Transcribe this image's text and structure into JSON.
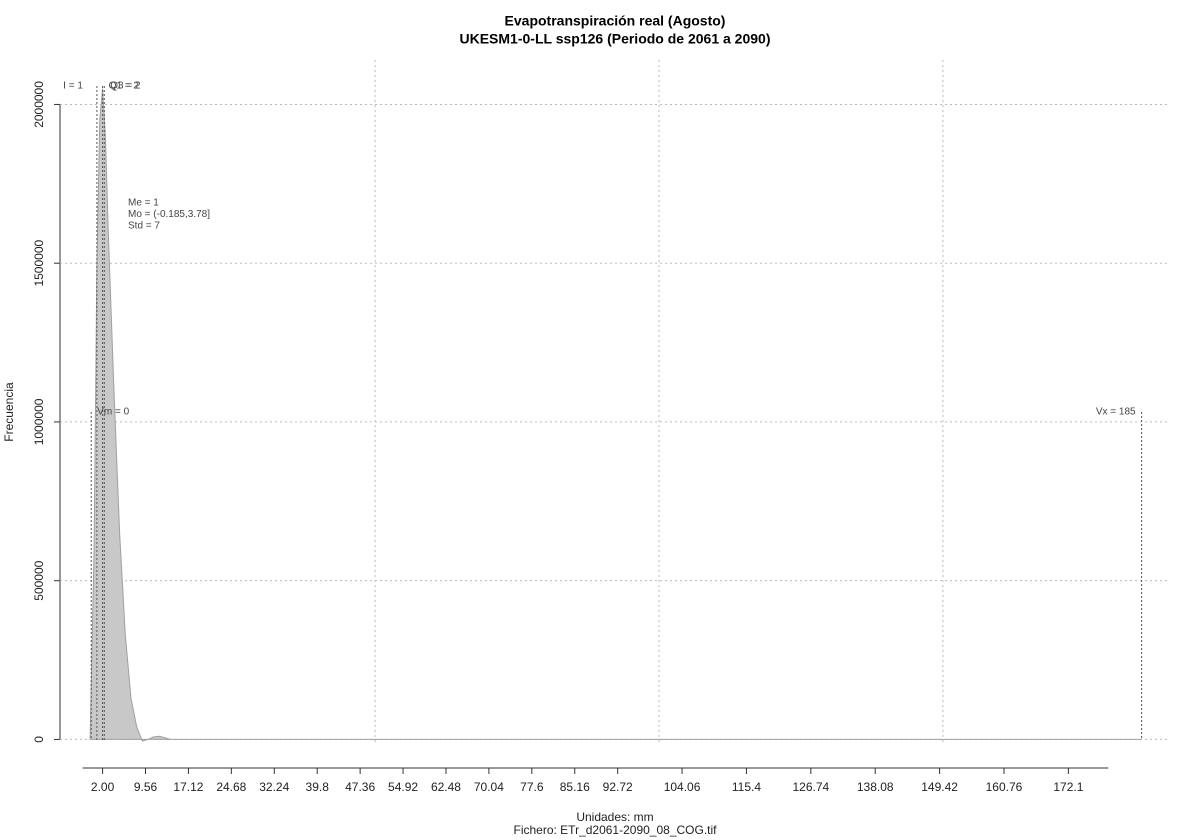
{
  "chart_data": {
    "type": "density",
    "title": "Evapotranspiración real (Agosto)",
    "subtitle": "UKESM1-0-LL ssp126 (Periodo de 2061 a 2090)",
    "x_label": "Unidades: mm",
    "y_label": "Frecuencia",
    "footer": "Fichero: ETr_d2061-2090_08_COG.tif",
    "xlim": [
      -5.5,
      190
    ],
    "ylim": [
      -90000,
      2140000
    ],
    "xticks": [
      {
        "value": 2,
        "label": "2.00"
      },
      9.56,
      17.12,
      24.68,
      32.24,
      39.8,
      47.36,
      54.92,
      62.48,
      70.04,
      77.6,
      85.16,
      92.72,
      104.06,
      115.4,
      126.74,
      138.08,
      149.42,
      160.76,
      172.1
    ],
    "yticks": [
      0,
      500000,
      1000000,
      1500000,
      2000000
    ],
    "xgrid": [
      50,
      100,
      150
    ],
    "grid": true,
    "density": {
      "color": "#c8c8c8",
      "line_color": "#a0a0a0",
      "x": [
        -0.2,
        0.5,
        1,
        1.5,
        2,
        2.5,
        3,
        4,
        5,
        6,
        7,
        8,
        9,
        10,
        11,
        12,
        13,
        14,
        16,
        30,
        185
      ],
      "y": [
        0,
        600000,
        1500000,
        1950000,
        2050000,
        1900000,
        1600000,
        1100000,
        650000,
        330000,
        130000,
        40000,
        -5000,
        0,
        8000,
        10000,
        5000,
        0,
        0,
        0,
        0
      ]
    },
    "top_markers": [
      {
        "label": "I = 1",
        "value": 1
      },
      {
        "label": "Q1 = 2",
        "value": 2
      },
      {
        "label": "Q3 = 2",
        "value": 2.3
      }
    ],
    "mid_markers": [
      {
        "label": "Vm = 0",
        "value": 0
      },
      {
        "label": "Vx = 185",
        "value": 185
      }
    ],
    "stats": [
      "Me = 1",
      "Mo = (-0.185,3.78]",
      "Std = 7"
    ]
  }
}
